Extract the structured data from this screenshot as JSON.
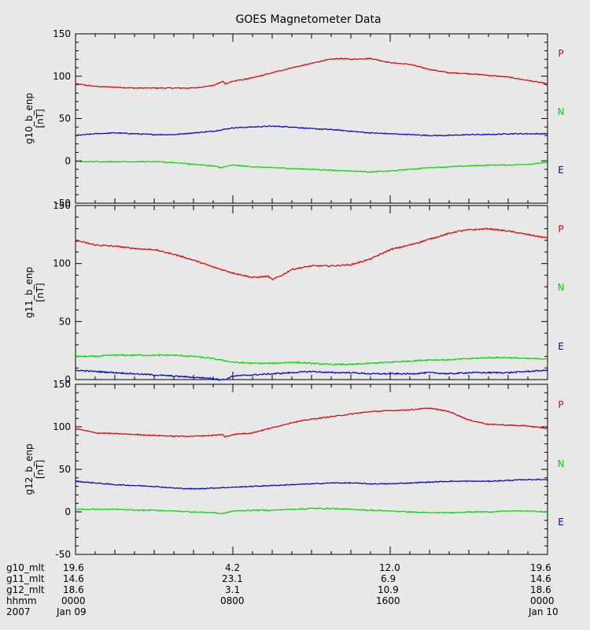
{
  "title": "GOES Magnetometer Data",
  "colors": {
    "P": "#e00000",
    "N": "#00d800",
    "E": "#0000c8",
    "background": "#e8e8e8",
    "axis": "#000000"
  },
  "chart_data": [
    {
      "type": "line",
      "ylabel": "g10_b_enp",
      "yunit": "[nT]",
      "ylim": [
        -50,
        150
      ],
      "yticks": [
        "-50",
        "0",
        "50",
        "100",
        "150"
      ],
      "xlim": [
        0,
        24
      ],
      "series": [
        {
          "name": "P",
          "color": "#e00000",
          "x": [
            0,
            1,
            2,
            3,
            4,
            5,
            6,
            7,
            7.5,
            7.6,
            8,
            9,
            10,
            11,
            12,
            12.5,
            13,
            13.5,
            14,
            15,
            16,
            17,
            18,
            19,
            20,
            21,
            22,
            23,
            24
          ],
          "y": [
            91,
            88,
            87,
            86,
            86,
            86,
            86,
            89,
            94,
            91,
            94,
            98,
            104,
            110,
            115,
            118,
            120,
            121,
            120,
            121,
            116,
            114,
            108,
            104,
            103,
            101,
            99,
            95,
            91
          ]
        },
        {
          "name": "N",
          "color": "#0000c8",
          "x": [
            0,
            1,
            2,
            3,
            4,
            5,
            6,
            7,
            8,
            9,
            10,
            11,
            12,
            13,
            14,
            15,
            16,
            17,
            18,
            19,
            20,
            21,
            22,
            23,
            24
          ],
          "y": [
            30,
            32,
            33,
            32,
            31,
            31,
            33,
            35,
            39,
            40,
            41,
            40,
            38,
            37,
            35,
            33,
            32,
            31,
            30,
            30,
            31,
            31,
            32,
            32,
            32
          ]
        },
        {
          "name": "E",
          "color": "#00d800",
          "x": [
            0,
            1,
            2,
            3,
            4,
            5,
            6,
            7,
            7.4,
            8,
            9,
            10,
            11,
            12,
            13,
            14,
            15,
            16,
            17,
            18,
            19,
            20,
            21,
            22,
            23,
            24
          ],
          "y": [
            -1,
            -1,
            -1,
            -1,
            -1,
            -2,
            -4,
            -6,
            -8,
            -5,
            -7,
            -8,
            -9,
            -10,
            -11,
            -12,
            -13,
            -12,
            -10,
            -8,
            -7,
            -6,
            -5,
            -5,
            -4,
            -2
          ]
        }
      ],
      "series_labels": [
        "P",
        "N",
        "E"
      ]
    },
    {
      "type": "line",
      "ylabel": "g11_b_enp",
      "yunit": "[nT]",
      "ylim": [
        0,
        150
      ],
      "yticks": [
        "0",
        "50",
        "100",
        "150"
      ],
      "xlim": [
        0,
        24
      ],
      "series": [
        {
          "name": "P",
          "color": "#e00000",
          "x": [
            0,
            0.5,
            1,
            2,
            3,
            4,
            5,
            6,
            7,
            8,
            9,
            9.8,
            10,
            10.5,
            11,
            12,
            13,
            14,
            15,
            15.5,
            16,
            17,
            18,
            19,
            19.5,
            20,
            21,
            22,
            23,
            24
          ],
          "y": [
            120,
            118,
            116,
            115,
            113,
            112,
            108,
            103,
            97,
            92,
            88,
            89,
            86,
            90,
            95,
            98,
            98,
            99,
            104,
            108,
            112,
            116,
            121,
            126,
            128,
            129,
            130,
            128,
            125,
            122
          ]
        },
        {
          "name": "N",
          "color": "#00d800",
          "x": [
            0,
            1,
            2,
            3,
            4,
            5,
            6,
            7,
            8,
            9,
            10,
            11,
            12,
            13,
            14,
            15,
            16,
            17,
            18,
            19,
            20,
            21,
            22,
            23,
            24
          ],
          "y": [
            20,
            20,
            21,
            21,
            21,
            21,
            20,
            18,
            15,
            14,
            14,
            15,
            14,
            13,
            13,
            14,
            15,
            16,
            17,
            17,
            18,
            19,
            19,
            18,
            18
          ]
        },
        {
          "name": "E",
          "color": "#0000c8",
          "x": [
            0,
            1,
            2,
            3,
            4,
            5,
            6,
            7,
            7.3,
            7.6,
            8,
            9,
            10,
            11,
            12,
            13,
            14,
            15,
            16,
            17,
            18,
            19,
            20,
            21,
            22,
            23,
            24
          ],
          "y": [
            8,
            7,
            6,
            5,
            4,
            3,
            2,
            1,
            0,
            0,
            3,
            4,
            5,
            6,
            7,
            6,
            6,
            5,
            5,
            5,
            6,
            5,
            6,
            6,
            6,
            7,
            8
          ]
        }
      ],
      "series_labels": [
        "P",
        "N",
        "E"
      ]
    },
    {
      "type": "line",
      "ylabel": "g12_b_enp",
      "yunit": "[nT]",
      "ylim": [
        -50,
        150
      ],
      "yticks": [
        "-50",
        "0",
        "50",
        "100",
        "150"
      ],
      "xlim": [
        0,
        24
      ],
      "series": [
        {
          "name": "P",
          "color": "#e00000",
          "x": [
            0,
            1,
            2,
            3,
            4,
            5,
            6,
            7,
            7.5,
            7.6,
            8,
            9,
            10,
            11,
            12,
            13,
            14,
            15,
            16,
            17,
            18,
            19,
            20,
            21,
            22,
            23,
            24
          ],
          "y": [
            98,
            93,
            92,
            91,
            90,
            89,
            89,
            90,
            91,
            88,
            91,
            93,
            99,
            105,
            109,
            112,
            115,
            118,
            119,
            120,
            122,
            118,
            108,
            103,
            102,
            101,
            98
          ]
        },
        {
          "name": "N",
          "color": "#0000c8",
          "x": [
            0,
            1,
            2,
            3,
            4,
            5,
            6,
            7,
            8,
            9,
            10,
            11,
            12,
            13,
            14,
            15,
            16,
            17,
            18,
            19,
            20,
            21,
            22,
            23,
            24
          ],
          "y": [
            36,
            34,
            32,
            31,
            30,
            28,
            27,
            28,
            29,
            30,
            31,
            32,
            33,
            34,
            34,
            33,
            33,
            34,
            35,
            36,
            36,
            36,
            37,
            38,
            38
          ]
        },
        {
          "name": "E",
          "color": "#00d800",
          "x": [
            0,
            1,
            2,
            3,
            4,
            5,
            6,
            7,
            7.5,
            8,
            9,
            10,
            11,
            12,
            13,
            14,
            15,
            16,
            17,
            18,
            19,
            20,
            21,
            22,
            23,
            24
          ],
          "y": [
            3,
            3,
            3,
            2,
            2,
            1,
            0,
            -1,
            -2,
            1,
            2,
            2,
            3,
            4,
            4,
            3,
            2,
            1,
            0,
            -1,
            -1,
            0,
            0,
            1,
            1,
            0
          ]
        }
      ],
      "series_labels": [
        "P",
        "N",
        "E"
      ]
    }
  ],
  "footer": {
    "rows": [
      {
        "label": "g10_mlt",
        "values": [
          "19.6",
          "4.2",
          "12.0",
          "19.6"
        ]
      },
      {
        "label": "g11_mlt",
        "values": [
          "14.6",
          "23.1",
          "6.9",
          "14.6"
        ]
      },
      {
        "label": "g12_mlt",
        "values": [
          "18.6",
          "3.1",
          "10.9",
          "18.6"
        ]
      },
      {
        "label": "hhmm",
        "values": [
          "0000",
          "0800",
          "1600",
          "0000"
        ]
      },
      {
        "label": "2007",
        "values": [
          "Jan 09",
          "",
          "",
          "Jan 10"
        ]
      }
    ]
  }
}
